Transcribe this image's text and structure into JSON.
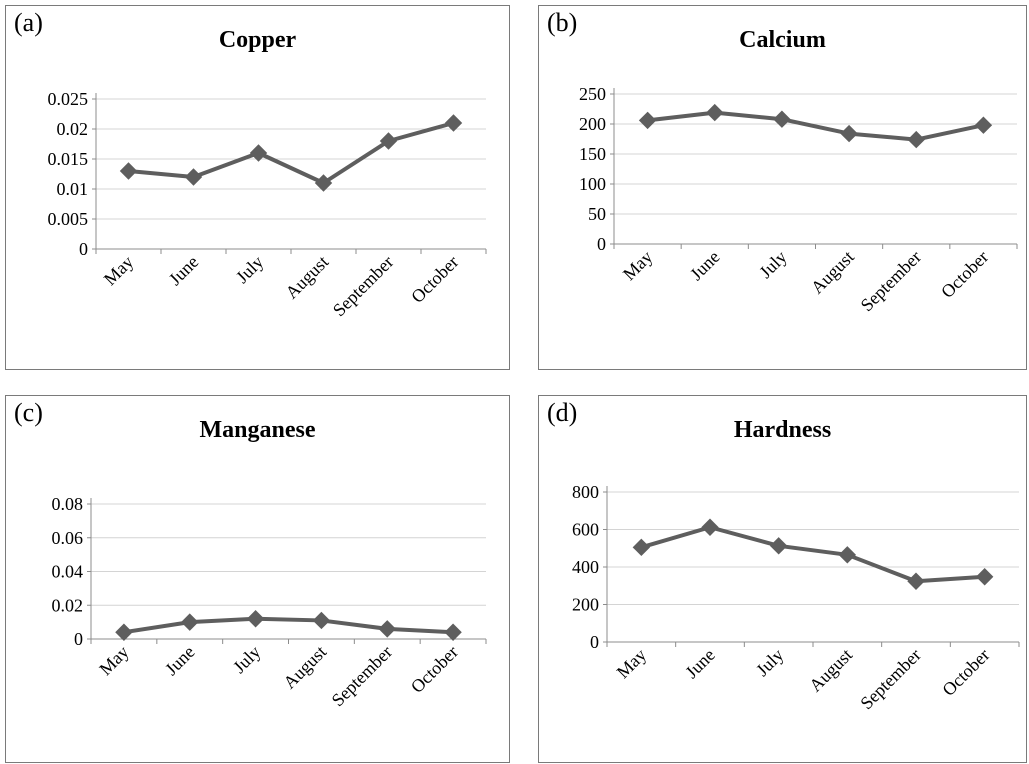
{
  "charts": [
    {
      "label": "(a)",
      "title": "Copper"
    },
    {
      "label": "(b)",
      "title": "Calcium"
    },
    {
      "label": "(c)",
      "title": "Manganese"
    },
    {
      "label": "(d)",
      "title": "Hardness"
    }
  ],
  "series_color": "#5e5e5e",
  "chart_data": [
    {
      "type": "line",
      "title": "Copper",
      "categories": [
        "May",
        "June",
        "July",
        "August",
        "September",
        "October"
      ],
      "values": [
        0.013,
        0.012,
        0.016,
        0.011,
        0.018,
        0.021
      ],
      "ylim": [
        0,
        0.025
      ],
      "yticks": [
        "0",
        "0.005",
        "0.01",
        "0.015",
        "0.02",
        "0.025"
      ],
      "grid": true,
      "marker": "diamond"
    },
    {
      "type": "line",
      "title": "Calcium",
      "categories": [
        "May",
        "June",
        "July",
        "August",
        "September",
        "October"
      ],
      "values": [
        206,
        219,
        208,
        184,
        174,
        198
      ],
      "ylim": [
        0,
        250
      ],
      "yticks": [
        "0",
        "50",
        "100",
        "150",
        "200",
        "250"
      ],
      "grid": true,
      "marker": "diamond"
    },
    {
      "type": "line",
      "title": "Manganese",
      "categories": [
        "May",
        "June",
        "July",
        "August",
        "September",
        "October"
      ],
      "values": [
        0.004,
        0.01,
        0.012,
        0.011,
        0.006,
        0.004
      ],
      "ylim": [
        0,
        0.08
      ],
      "yticks": [
        "0",
        "0.02",
        "0.04",
        "0.06",
        "0.08"
      ],
      "grid": true,
      "marker": "diamond"
    },
    {
      "type": "line",
      "title": "Hardness",
      "categories": [
        "May",
        "June",
        "July",
        "August",
        "September",
        "October"
      ],
      "values": [
        505,
        612,
        513,
        465,
        324,
        348
      ],
      "ylim": [
        0,
        800
      ],
      "yticks": [
        "0",
        "200",
        "400",
        "600",
        "800"
      ],
      "grid": true,
      "marker": "diamond"
    }
  ]
}
